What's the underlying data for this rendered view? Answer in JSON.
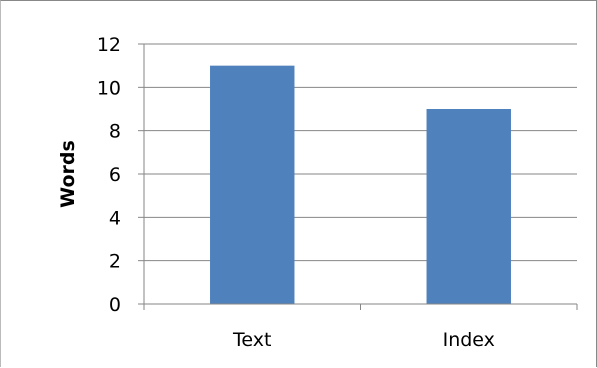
{
  "chart_data": {
    "type": "bar",
    "categories": [
      "Text",
      "Index"
    ],
    "values": [
      11,
      9
    ],
    "title": "",
    "xlabel": "",
    "ylabel": "Words",
    "ylim": [
      0,
      12
    ],
    "yticks": [
      0,
      2,
      4,
      6,
      8,
      10,
      12
    ],
    "grid": true,
    "legend": "none",
    "bar_color": "#4f81bd"
  }
}
